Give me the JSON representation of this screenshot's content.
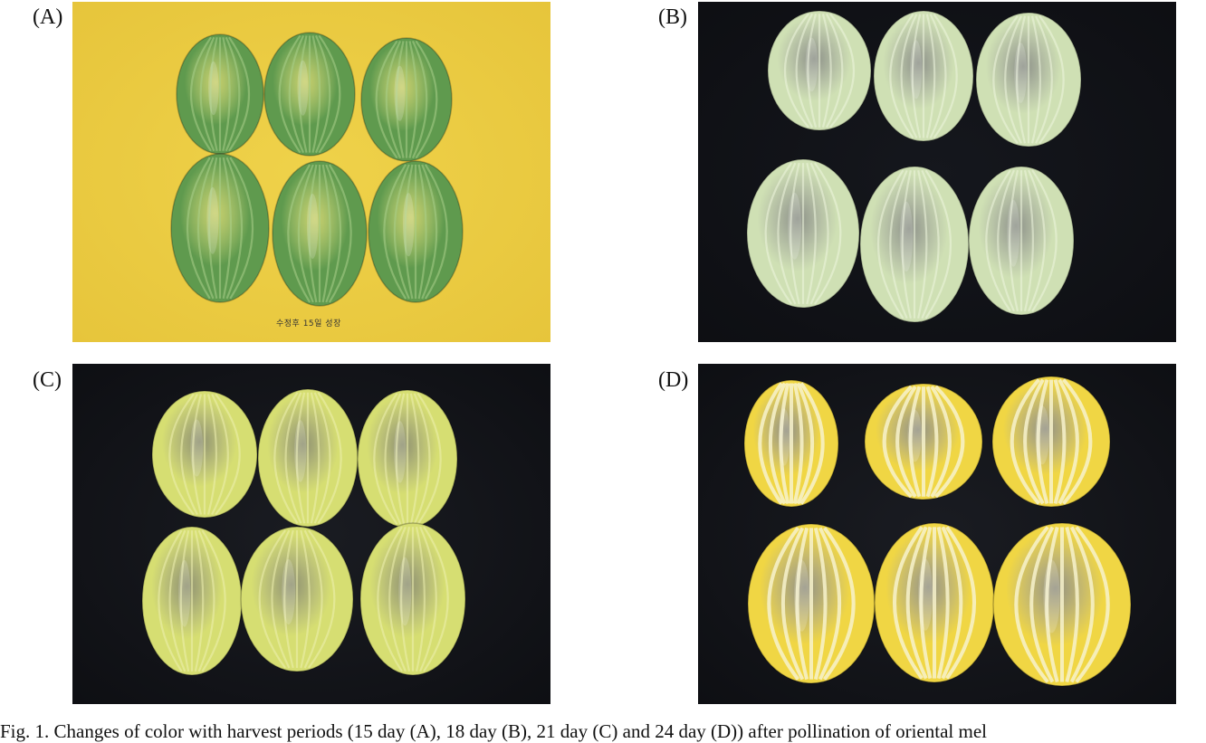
{
  "figure": {
    "panels": [
      {
        "label": "(A)",
        "stage": "15 day",
        "background": "#efd24a",
        "fruit_color": "#5f9a4e",
        "stripe_color": "#a9cf8a",
        "photo_text": "수정후 15일 성장"
      },
      {
        "label": "(B)",
        "stage": "18 day",
        "background": "#15171d",
        "fruit_color": "#cfe0b4",
        "stripe_color": "#eef5df",
        "photo_text": ""
      },
      {
        "label": "(C)",
        "stage": "21 day",
        "background": "#1a1c22",
        "fruit_color": "#d6de72",
        "stripe_color": "#eef1b0",
        "photo_text": ""
      },
      {
        "label": "(D)",
        "stage": "24 day",
        "background": "#1a1c22",
        "fruit_color": "#f0d644",
        "stripe_color": "#f7f2cc",
        "photo_text": ""
      }
    ],
    "caption": "Fig. 1. Changes of color with harvest periods (15 day (A), 18 day (B), 21 day (C) and 24 day (D)) after pollination of oriental mel"
  }
}
